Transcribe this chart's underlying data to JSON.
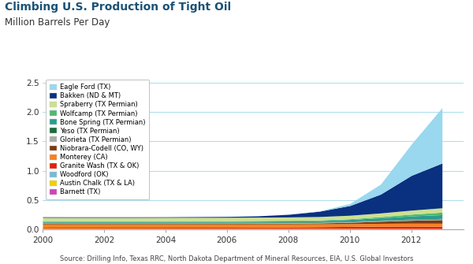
{
  "title": "Climbing U.S. Production of Tight Oil",
  "subtitle": "Million Barrels Per Day",
  "source": "Source: Drilling Info, Texas RRC, North Dakota Department of Mineral Resources, EIA, U.S. Global Investors",
  "years": [
    2000,
    2001,
    2002,
    2003,
    2004,
    2005,
    2006,
    2007,
    2008,
    2009,
    2010,
    2011,
    2012,
    2013
  ],
  "series": [
    {
      "name": "Barnett (TX)",
      "color": "#cc44bb",
      "values": [
        0.005,
        0.005,
        0.005,
        0.005,
        0.005,
        0.005,
        0.005,
        0.005,
        0.005,
        0.005,
        0.005,
        0.005,
        0.005,
        0.005
      ]
    },
    {
      "name": "Austin Chalk (TX & LA)",
      "color": "#f0d000",
      "values": [
        0.02,
        0.019,
        0.018,
        0.018,
        0.017,
        0.017,
        0.016,
        0.016,
        0.015,
        0.015,
        0.014,
        0.013,
        0.012,
        0.011
      ]
    },
    {
      "name": "Woodford (OK)",
      "color": "#78b8d8",
      "values": [
        0.003,
        0.003,
        0.003,
        0.003,
        0.003,
        0.003,
        0.003,
        0.003,
        0.003,
        0.003,
        0.003,
        0.003,
        0.003,
        0.003
      ]
    },
    {
      "name": "Granite Wash (TX & OK)",
      "color": "#e02010",
      "values": [
        0.012,
        0.012,
        0.013,
        0.013,
        0.014,
        0.015,
        0.016,
        0.018,
        0.022,
        0.026,
        0.032,
        0.038,
        0.04,
        0.038
      ]
    },
    {
      "name": "Monterey (CA)",
      "color": "#f88020",
      "values": [
        0.055,
        0.055,
        0.055,
        0.055,
        0.055,
        0.055,
        0.055,
        0.055,
        0.052,
        0.05,
        0.048,
        0.048,
        0.05,
        0.052
      ]
    },
    {
      "name": "Niobrara-Codell (CO, WY)",
      "color": "#7b3a10",
      "values": [
        0.01,
        0.01,
        0.01,
        0.01,
        0.01,
        0.01,
        0.01,
        0.01,
        0.012,
        0.015,
        0.022,
        0.035,
        0.048,
        0.06
      ]
    },
    {
      "name": "Glorieta (TX Permian)",
      "color": "#aaaaaa",
      "values": [
        0.012,
        0.012,
        0.012,
        0.012,
        0.012,
        0.012,
        0.012,
        0.012,
        0.012,
        0.012,
        0.012,
        0.012,
        0.012,
        0.012
      ]
    },
    {
      "name": "Yeso (TX Permian)",
      "color": "#1a6b3c",
      "values": [
        0.008,
        0.008,
        0.008,
        0.008,
        0.008,
        0.008,
        0.008,
        0.008,
        0.008,
        0.008,
        0.008,
        0.008,
        0.008,
        0.008
      ]
    },
    {
      "name": "Bone Spring (TX Permian)",
      "color": "#2a9d8f",
      "values": [
        0.015,
        0.015,
        0.015,
        0.015,
        0.016,
        0.016,
        0.016,
        0.017,
        0.018,
        0.02,
        0.028,
        0.038,
        0.055,
        0.065
      ]
    },
    {
      "name": "Wolfcamp (TX Permian)",
      "color": "#50b870",
      "values": [
        0.01,
        0.01,
        0.01,
        0.01,
        0.01,
        0.01,
        0.01,
        0.01,
        0.01,
        0.01,
        0.012,
        0.02,
        0.03,
        0.042
      ]
    },
    {
      "name": "Spraberry (TX Permian)",
      "color": "#cce090",
      "values": [
        0.058,
        0.058,
        0.058,
        0.058,
        0.058,
        0.058,
        0.058,
        0.058,
        0.058,
        0.058,
        0.06,
        0.063,
        0.068,
        0.075
      ]
    },
    {
      "name": "Bakken (ND & MT)",
      "color": "#0a3080",
      "values": [
        0.01,
        0.01,
        0.01,
        0.01,
        0.01,
        0.012,
        0.015,
        0.022,
        0.045,
        0.09,
        0.165,
        0.32,
        0.59,
        0.76
      ]
    },
    {
      "name": "Eagle Ford (TX)",
      "color": "#99d8ee",
      "values": [
        0.0,
        0.0,
        0.0,
        0.0,
        0.0,
        0.0,
        0.0,
        0.0,
        0.001,
        0.006,
        0.035,
        0.17,
        0.53,
        0.94
      ]
    }
  ],
  "xlim": [
    2000,
    2013.7
  ],
  "ylim": [
    0,
    2.6
  ],
  "yticks": [
    0.0,
    0.5,
    1.0,
    1.5,
    2.0,
    2.5
  ],
  "xticks": [
    2000,
    2002,
    2004,
    2006,
    2008,
    2010,
    2012
  ],
  "background_color": "#ffffff",
  "grid_color": "#aee0ee"
}
